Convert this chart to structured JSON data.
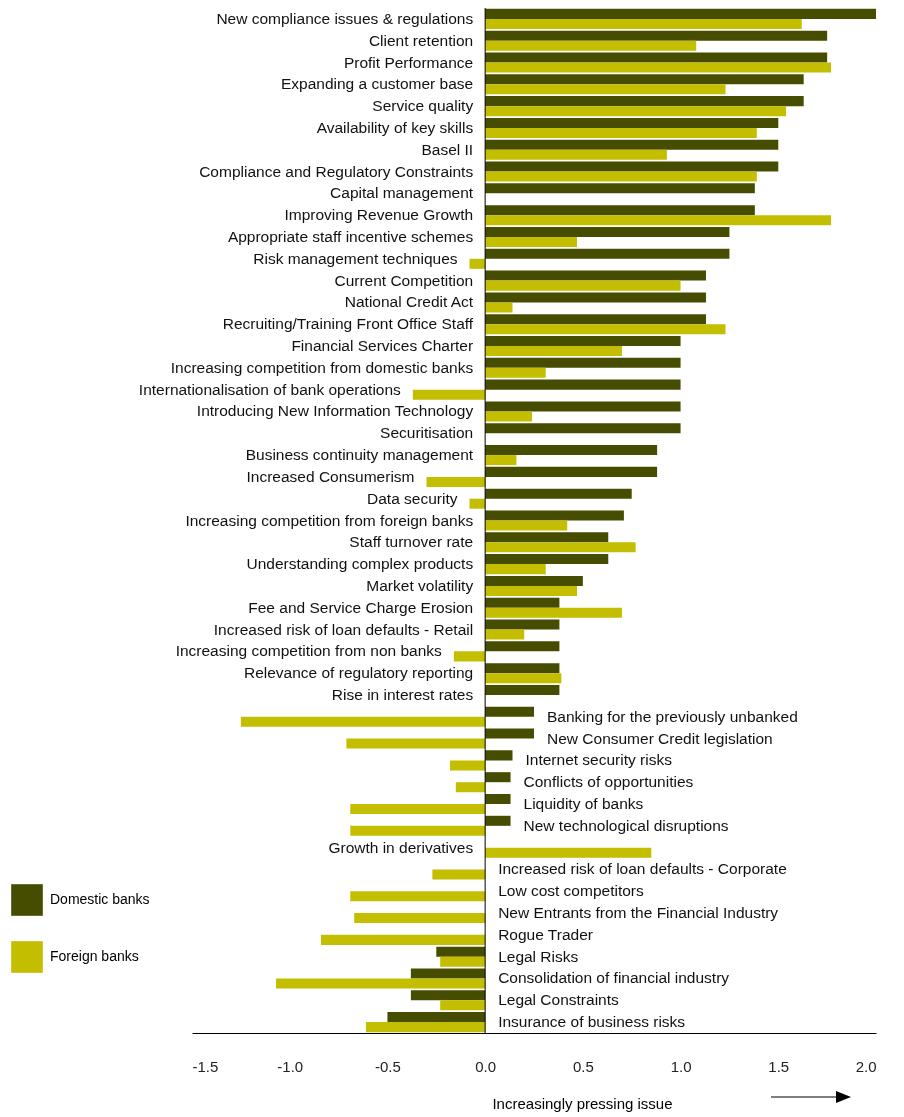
{
  "chart_data": {
    "type": "bar",
    "orientation": "horizontal",
    "xlabel": "Increasingly pressing issue",
    "categories": [
      "New compliance issues & regulations",
      "Client retention",
      "Profit Performance",
      "Expanding a customer base",
      "Service quality",
      "Availability of key skills",
      "Basel II",
      "Compliance and Regulatory Constraints",
      "Capital management",
      "Improving Revenue Growth",
      "Appropriate staff incentive schemes",
      "Risk management techniques",
      "Current Competition",
      "National Credit Act",
      "Recruiting/Training Front Office Staff",
      "Financial Services Charter",
      "Increasing competition from domestic banks",
      "Internationalisation of bank operations",
      "Introducing New Information Technology",
      "Securitisation",
      "Business continuity management",
      "Increased Consumerism",
      "Data security",
      "Increasing competition from foreign banks",
      "Staff turnover rate",
      "Understanding complex products",
      "Market volatility",
      "Fee and Service Charge Erosion",
      "Increased risk of loan defaults - Retail",
      "Increasing competition from non banks",
      "Relevance of regulatory reporting",
      "Rise in interest rates",
      "Banking for the previously unbanked",
      "New Consumer Credit legislation",
      "Internet security risks",
      "Conflicts of opportunities",
      "Liquidity of banks",
      "New technological disruptions",
      "Growth in derivatives",
      "Increased risk of loan defaults - Corporate",
      "Low cost competitors",
      "New Entrants from the Financial Industry",
      "Rogue Trader",
      "Legal Risks",
      "Consolidation of financial industry",
      "Legal Constraints",
      "Insurance of business risks"
    ],
    "series": [
      {
        "name": "Domestic banks",
        "color": "#474d00",
        "values": [
          2.0,
          1.75,
          1.75,
          1.63,
          1.63,
          1.5,
          1.5,
          1.5,
          1.38,
          1.38,
          1.25,
          1.25,
          1.13,
          1.13,
          1.13,
          1.0,
          1.0,
          1.0,
          1.0,
          1.0,
          0.88,
          0.88,
          0.75,
          0.71,
          0.63,
          0.63,
          0.5,
          0.38,
          0.38,
          0.38,
          0.38,
          0.38,
          0.25,
          0.25,
          0.14,
          0.13,
          0.13,
          0.13,
          null,
          null,
          null,
          null,
          null,
          -0.25,
          -0.38,
          -0.38,
          -0.5
        ]
      },
      {
        "name": "Foreign banks",
        "color": "#c4be00",
        "values": [
          1.62,
          1.08,
          1.77,
          1.23,
          1.54,
          1.39,
          0.93,
          1.39,
          null,
          1.77,
          0.47,
          -0.08,
          1.0,
          0.14,
          1.23,
          0.7,
          0.31,
          -0.37,
          0.24,
          null,
          0.16,
          -0.3,
          -0.08,
          0.42,
          0.77,
          0.31,
          0.47,
          0.7,
          0.2,
          -0.16,
          0.39,
          null,
          -1.25,
          -0.71,
          -0.18,
          -0.15,
          -0.69,
          -0.69,
          0.85,
          -0.27,
          -0.69,
          -0.67,
          -0.84,
          -0.23,
          -1.07,
          -0.23,
          -0.61
        ]
      }
    ],
    "xlim": [
      -1.5,
      2.0
    ],
    "xticks": [
      -1.5,
      {
        "value": -1,
        "label": "-1.0"
      },
      -0.5,
      {
        "value": 0,
        "label": "0.0"
      },
      0.5,
      {
        "value": 1,
        "label": "1.0"
      },
      1.5,
      {
        "value": 2,
        "label": "2.0"
      }
    ],
    "legend": "bottom left",
    "grid": false
  }
}
